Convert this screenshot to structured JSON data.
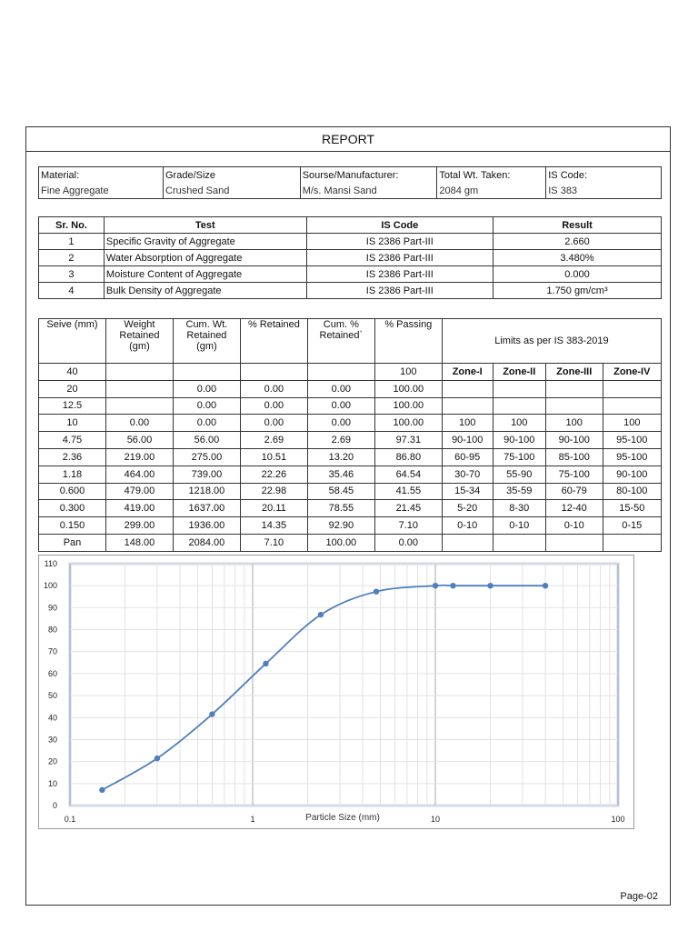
{
  "report_title": "REPORT",
  "info": {
    "headers": [
      "Material:",
      "Grade/Size",
      "Sourse/Manufacturer:",
      "Total Wt. Taken:",
      "IS Code:"
    ],
    "values": [
      "Fine Aggregate",
      "Crushed Sand",
      "M/s. Mansi Sand",
      "2084 gm",
      "IS 383"
    ]
  },
  "tests": {
    "headers": [
      "Sr. No.",
      "Test",
      "IS Code",
      "Result"
    ],
    "rows": [
      [
        "1",
        "Specific Gravity of Aggregate",
        "IS 2386 Part-III",
        "2.660"
      ],
      [
        "2",
        "Water Absorption of Aggregate",
        "IS 2386 Part-III",
        "3.480%"
      ],
      [
        "3",
        "Moisture Content of Aggregate",
        "IS 2386 Part-III",
        "0.000"
      ],
      [
        "4",
        "Bulk Density of Aggregate",
        "IS 2386 Part-III",
        "1.750 gm/cm³"
      ]
    ]
  },
  "sieve": {
    "headers": {
      "sieve": "Seive (mm)",
      "weight": "Weight Retained (gm)",
      "cum_wt": "Cum. Wt. Retained (gm)",
      "pct_ret": "% Retained",
      "cum_pct": "Cum. % Retained`",
      "passing": "%  Passing",
      "limits": "Limits as per IS 383-2019"
    },
    "zones": [
      "Zone-I",
      "Zone-II",
      "Zone-III",
      "Zone-IV"
    ],
    "rows": [
      [
        "40",
        "",
        "",
        "",
        "",
        "100"
      ],
      [
        "20",
        "",
        "0.00",
        "0.00",
        "0.00",
        "100.00"
      ],
      [
        "12.5",
        "",
        "0.00",
        "0.00",
        "0.00",
        "100.00"
      ],
      [
        "10",
        "0.00",
        "0.00",
        "0.00",
        "0.00",
        "100.00",
        "100",
        "100",
        "100",
        "100"
      ],
      [
        "4.75",
        "56.00",
        "56.00",
        "2.69",
        "2.69",
        "97.31",
        "90-100",
        "90-100",
        "90-100",
        "95-100"
      ],
      [
        "2.36",
        "219.00",
        "275.00",
        "10.51",
        "13.20",
        "86.80",
        "60-95",
        "75-100",
        "85-100",
        "95-100"
      ],
      [
        "1.18",
        "464.00",
        "739.00",
        "22.26",
        "35.46",
        "64.54",
        "30-70",
        "55-90",
        "75-100",
        "90-100"
      ],
      [
        "0.600",
        "479.00",
        "1218.00",
        "22.98",
        "58.45",
        "41.55",
        "15-34",
        "35-59",
        "60-79",
        "80-100"
      ],
      [
        "0.300",
        "419.00",
        "1637.00",
        "20.11",
        "78.55",
        "21.45",
        "5-20",
        "8-30",
        "12-40",
        "15-50"
      ],
      [
        "0.150",
        "299.00",
        "1936.00",
        "14.35",
        "92.90",
        "7.10",
        "0-10",
        "0-10",
        "0-10",
        "0-15"
      ],
      [
        "Pan",
        "148.00",
        "2084.00",
        "7.10",
        "100.00",
        "0.00"
      ]
    ]
  },
  "chart_data": {
    "type": "line",
    "xlabel": "Particle Size (mm)",
    "ylabel": "",
    "x_scale": "log",
    "xlim": [
      0.1,
      100
    ],
    "ylim": [
      0,
      110
    ],
    "x_ticks": [
      "0.1",
      "1",
      "10",
      "100"
    ],
    "y_ticks": [
      "0",
      "10",
      "20",
      "30",
      "40",
      "50",
      "60",
      "70",
      "80",
      "90",
      "100",
      "110"
    ],
    "grid": true,
    "series": [
      {
        "x": [
          0.15,
          0.3,
          0.6,
          1.18,
          2.36,
          4.75,
          10,
          12.5,
          20,
          40
        ],
        "y": [
          7.1,
          21.45,
          41.55,
          64.54,
          86.8,
          97.31,
          100,
          100,
          100,
          100
        ]
      }
    ],
    "color": "#4f7fbf"
  },
  "page_number": "Page-02"
}
